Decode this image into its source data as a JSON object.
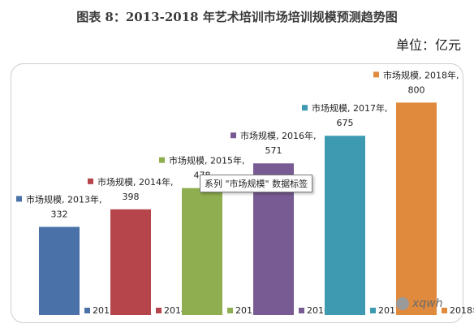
{
  "chart_data": {
    "type": "bar",
    "title": "图表 8：2013-2018 年艺术培训市场培训规模预测趋势图",
    "unit_label": "单位：亿元",
    "categories": [
      "2013年",
      "2014年",
      "2015年",
      "2016年",
      "2017年",
      "2018年"
    ],
    "series_name": "市场规模",
    "values": [
      332,
      398,
      478,
      571,
      675,
      800
    ],
    "colors": [
      "#4a72a8",
      "#b5444b",
      "#8fae4f",
      "#775b92",
      "#3d9ab1",
      "#e08a3e"
    ],
    "data_label_prefix": "市场规模",
    "ylim": [
      0,
      850
    ],
    "legend_placement": "bottom"
  },
  "tooltip_text": "系列 \"市场规模\" 数据标签",
  "watermark_text": "xqwh"
}
